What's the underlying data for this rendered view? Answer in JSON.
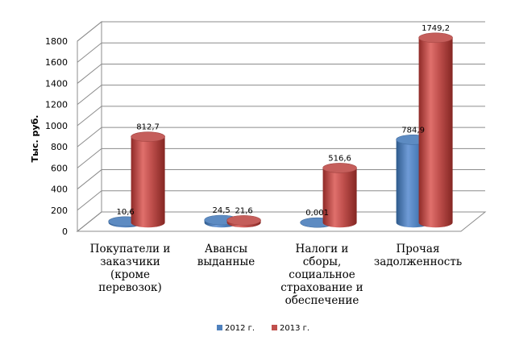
{
  "chart_data": {
    "type": "bar",
    "style": "3d-cylinder",
    "ylabel": "Тыс. руб.",
    "ylim": [
      0,
      1800
    ],
    "yticks": [
      "0",
      "200",
      "400",
      "600",
      "800",
      "1000",
      "1200",
      "1400",
      "1600",
      "1800"
    ],
    "grid": true,
    "legend_position": "bottom",
    "categories": [
      [
        "Покупатели и",
        "заказчики",
        "(кроме",
        "перевозок)"
      ],
      [
        "Авансы",
        "выданные"
      ],
      [
        "Налоги и",
        "сборы,",
        "социальное",
        "страхование и",
        "обеспечение"
      ],
      [
        "Прочая",
        "задолженность"
      ]
    ],
    "series": [
      {
        "name": "2012 г.",
        "color": "#4f81bd",
        "values": [
          10.6,
          24.5,
          0.001,
          784.9
        ],
        "labels": [
          "10,6",
          "24,5",
          "0,001",
          "784,9"
        ]
      },
      {
        "name": "2013 г.",
        "color": "#c0504d",
        "values": [
          812.7,
          21.6,
          516.6,
          1749.2
        ],
        "labels": [
          "812,7",
          "21,6",
          "516,6",
          "1749,2"
        ]
      }
    ]
  }
}
